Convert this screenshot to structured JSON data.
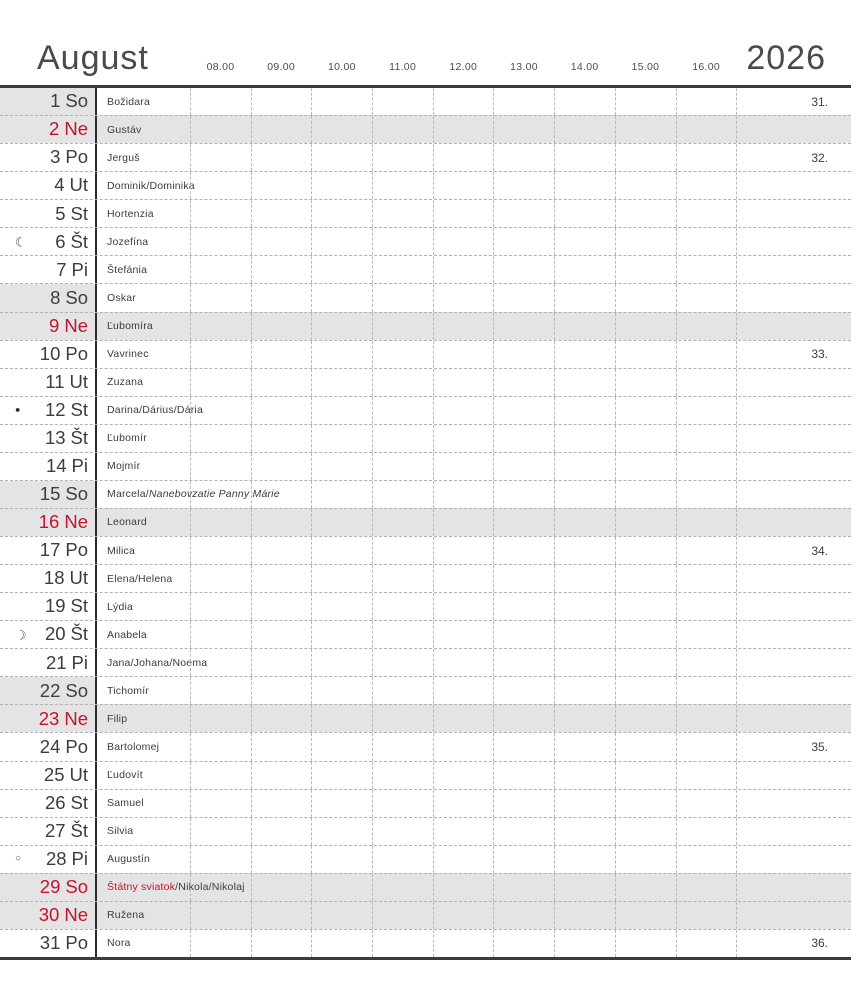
{
  "header": {
    "month": "August",
    "year": "2026",
    "time_labels": [
      "08.00",
      "09.00",
      "10.00",
      "11.00",
      "12.00",
      "13.00",
      "14.00",
      "15.00",
      "16.00"
    ]
  },
  "colors": {
    "accent_red": "#c3132f",
    "row_shade": "#e4e4e4",
    "grid_border": "#3c3c3c"
  },
  "moon_glyphs": {
    "last-quarter": "☾",
    "new": "●",
    "first-quarter": "☽",
    "full": "○"
  },
  "days": [
    {
      "num": "1",
      "abbr": "So",
      "type": "sat",
      "week": "31.",
      "name_parts": [
        {
          "text": "Božidara"
        }
      ]
    },
    {
      "num": "2",
      "abbr": "Ne",
      "type": "sun",
      "week": "",
      "name_parts": [
        {
          "text": "Gustáv"
        }
      ]
    },
    {
      "num": "3",
      "abbr": "Po",
      "type": "wd",
      "week": "32.",
      "name_parts": [
        {
          "text": "Jerguš"
        }
      ]
    },
    {
      "num": "4",
      "abbr": "Ut",
      "type": "wd",
      "week": "",
      "name_parts": [
        {
          "text": "Dominik/Dominika"
        }
      ]
    },
    {
      "num": "5",
      "abbr": "St",
      "type": "wd",
      "week": "",
      "name_parts": [
        {
          "text": "Hortenzia"
        }
      ]
    },
    {
      "num": "6",
      "abbr": "Št",
      "type": "wd",
      "week": "",
      "moon": "last-quarter",
      "name_parts": [
        {
          "text": "Jozefína"
        }
      ]
    },
    {
      "num": "7",
      "abbr": "Pi",
      "type": "wd",
      "week": "",
      "name_parts": [
        {
          "text": "Štefánia"
        }
      ]
    },
    {
      "num": "8",
      "abbr": "So",
      "type": "sat",
      "week": "",
      "name_parts": [
        {
          "text": "Oskar"
        }
      ]
    },
    {
      "num": "9",
      "abbr": "Ne",
      "type": "sun",
      "week": "",
      "name_parts": [
        {
          "text": "Ľubomíra"
        }
      ]
    },
    {
      "num": "10",
      "abbr": "Po",
      "type": "wd",
      "week": "33.",
      "name_parts": [
        {
          "text": "Vavrinec"
        }
      ]
    },
    {
      "num": "11",
      "abbr": "Ut",
      "type": "wd",
      "week": "",
      "name_parts": [
        {
          "text": "Zuzana"
        }
      ]
    },
    {
      "num": "12",
      "abbr": "St",
      "type": "wd",
      "week": "",
      "moon": "new",
      "name_parts": [
        {
          "text": "Darina/Dárius/Dária"
        }
      ]
    },
    {
      "num": "13",
      "abbr": "Št",
      "type": "wd",
      "week": "",
      "name_parts": [
        {
          "text": "Ľubomír"
        }
      ]
    },
    {
      "num": "14",
      "abbr": "Pi",
      "type": "wd",
      "week": "",
      "name_parts": [
        {
          "text": "Mojmír"
        }
      ]
    },
    {
      "num": "15",
      "abbr": "So",
      "type": "sat",
      "week": "",
      "name_parts": [
        {
          "text": "Marcela/"
        },
        {
          "text": "Nanebovzatie Panny Márie",
          "style": "italic"
        }
      ]
    },
    {
      "num": "16",
      "abbr": "Ne",
      "type": "sun",
      "week": "",
      "name_parts": [
        {
          "text": "Leonard"
        }
      ]
    },
    {
      "num": "17",
      "abbr": "Po",
      "type": "wd",
      "week": "34.",
      "name_parts": [
        {
          "text": "Milica"
        }
      ]
    },
    {
      "num": "18",
      "abbr": "Ut",
      "type": "wd",
      "week": "",
      "name_parts": [
        {
          "text": "Elena/Helena"
        }
      ]
    },
    {
      "num": "19",
      "abbr": "St",
      "type": "wd",
      "week": "",
      "name_parts": [
        {
          "text": "Lýdia"
        }
      ]
    },
    {
      "num": "20",
      "abbr": "Št",
      "type": "wd",
      "week": "",
      "moon": "first-quarter",
      "name_parts": [
        {
          "text": "Anabela"
        }
      ]
    },
    {
      "num": "21",
      "abbr": "Pi",
      "type": "wd",
      "week": "",
      "name_parts": [
        {
          "text": "Jana/Johana/Noema"
        }
      ]
    },
    {
      "num": "22",
      "abbr": "So",
      "type": "sat",
      "week": "",
      "name_parts": [
        {
          "text": "Tichomír"
        }
      ]
    },
    {
      "num": "23",
      "abbr": "Ne",
      "type": "sun",
      "week": "",
      "name_parts": [
        {
          "text": "Filip"
        }
      ]
    },
    {
      "num": "24",
      "abbr": "Po",
      "type": "wd",
      "week": "35.",
      "name_parts": [
        {
          "text": "Bartolomej"
        }
      ]
    },
    {
      "num": "25",
      "abbr": "Ut",
      "type": "wd",
      "week": "",
      "name_parts": [
        {
          "text": "Ľudovít"
        }
      ]
    },
    {
      "num": "26",
      "abbr": "St",
      "type": "wd",
      "week": "",
      "name_parts": [
        {
          "text": "Samuel"
        }
      ]
    },
    {
      "num": "27",
      "abbr": "Št",
      "type": "wd",
      "week": "",
      "name_parts": [
        {
          "text": "Silvia"
        }
      ]
    },
    {
      "num": "28",
      "abbr": "Pi",
      "type": "wd",
      "week": "",
      "moon": "full",
      "name_parts": [
        {
          "text": "Augustín"
        }
      ]
    },
    {
      "num": "29",
      "abbr": "So",
      "type": "hol",
      "week": "",
      "name_parts": [
        {
          "text": "Štátny sviatok",
          "style": "red"
        },
        {
          "text": "/Nikola/Nikolaj"
        }
      ]
    },
    {
      "num": "30",
      "abbr": "Ne",
      "type": "sun",
      "week": "",
      "name_parts": [
        {
          "text": "Ružena"
        }
      ]
    },
    {
      "num": "31",
      "abbr": "Po",
      "type": "wd",
      "week": "36.",
      "name_parts": [
        {
          "text": "Nora"
        }
      ]
    }
  ]
}
